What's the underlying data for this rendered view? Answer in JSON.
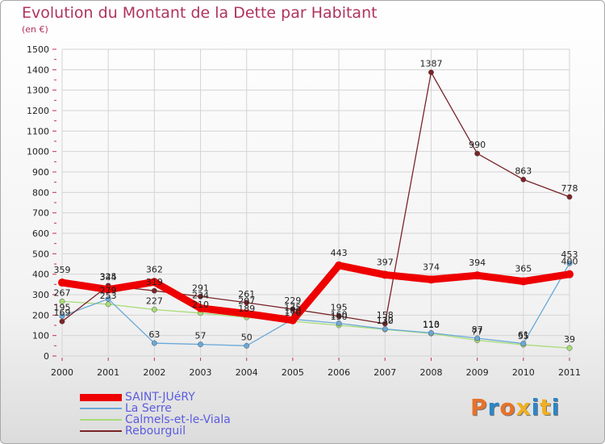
{
  "header": {
    "title": "Evolution du Montant de la Dette par Habitant",
    "subtitle": "(en €)"
  },
  "logo": {
    "text": "Proxiti",
    "colors": [
      "#e8722a",
      "#2a86c8",
      "#e8722a",
      "#f0b020",
      "#2a86c8",
      "#f0b020",
      "#2a86c8"
    ]
  },
  "chart_data": {
    "type": "line",
    "title": "Evolution du Montant de la Dette par Habitant",
    "subtitle": "(en €)",
    "x": [
      "2000",
      "2001",
      "2002",
      "2003",
      "2004",
      "2005",
      "2006",
      "2007",
      "2008",
      "2009",
      "2010",
      "2011"
    ],
    "ylim": [
      0,
      1500
    ],
    "yticks": [
      0,
      100,
      200,
      300,
      400,
      500,
      600,
      700,
      800,
      900,
      1000,
      1100,
      1200,
      1300,
      1400,
      1500
    ],
    "grid": true,
    "legend_position": "bottom-left",
    "series": [
      {
        "name": "SAINT-JUéRY",
        "color": "#ee0000",
        "values": [
          359,
          325,
          362,
          234,
          207,
          175,
          443,
          397,
          374,
          394,
          365,
          400
        ],
        "labels": [
          "359",
          "325",
          "362",
          "234",
          "207",
          "175",
          "443",
          "397",
          "374",
          "394",
          "365",
          "400"
        ]
      },
      {
        "name": "La Serre",
        "color": "#6aa8d8",
        "values": [
          195,
          279,
          63,
          57,
          50,
          180,
          160,
          132,
          113,
          87,
          61,
          453
        ],
        "labels": [
          "195",
          "279",
          "63",
          "57",
          "50",
          "180",
          "160",
          "132",
          "113",
          "87",
          "61",
          "453"
        ]
      },
      {
        "name": "Calmels-et-le-Viala",
        "color": "#a8dc78",
        "values": [
          267,
          253,
          227,
          210,
          189,
          170,
          150,
          130,
          110,
          77,
          55,
          39
        ],
        "labels": [
          "267",
          "253",
          "227",
          "210",
          "189",
          "170",
          "150",
          "130",
          "110",
          "77",
          "55",
          "39"
        ]
      },
      {
        "name": "Rebourguil",
        "color": "#7a2428",
        "values": [
          169,
          344,
          319,
          291,
          261,
          229,
          195,
          158,
          1387,
          990,
          863,
          778
        ],
        "labels": [
          "169",
          "344",
          "319",
          "291",
          "261",
          "229",
          "195",
          "158",
          "1387",
          "990",
          "863",
          "778"
        ]
      }
    ]
  }
}
